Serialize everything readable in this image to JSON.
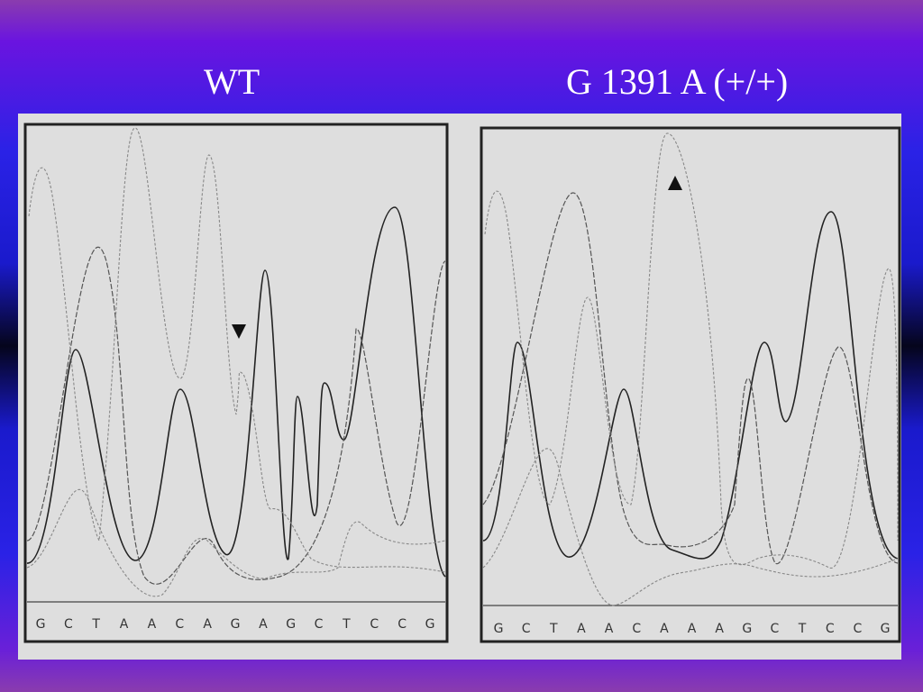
{
  "panels": [
    {
      "title": "WT",
      "bases": [
        "G",
        "C",
        "T",
        "A",
        "A",
        "C",
        "A",
        "G",
        "A",
        "G",
        "C",
        "T",
        "C",
        "C",
        "G"
      ]
    },
    {
      "title": "G 1391 A (+/+)",
      "bases": [
        "G",
        "C",
        "T",
        "A",
        "A",
        "C",
        "A",
        "A",
        "A",
        "G",
        "C",
        "T",
        "C",
        "C",
        "G"
      ]
    }
  ]
}
